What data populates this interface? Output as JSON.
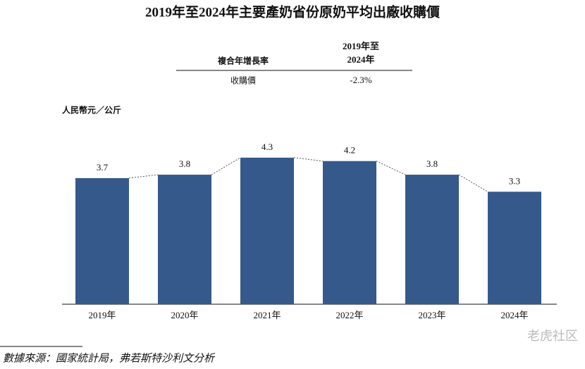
{
  "chart_data": {
    "type": "bar",
    "title": "2019年至2024年主要產奶省份原奶平均出廠收購價",
    "table": {
      "header": [
        "複合年增長率",
        "2019年至\n2024年"
      ],
      "rows": [
        [
          "收購價",
          "-2.3%"
        ]
      ]
    },
    "unit_label": "人民幣元／公斤",
    "categories": [
      "2019年",
      "2020年",
      "2021年",
      "2022年",
      "2023年",
      "2024年"
    ],
    "values": [
      3.7,
      3.8,
      4.3,
      4.2,
      3.8,
      3.3
    ],
    "color": "#35598a",
    "source": "數據來源：國家統計局，弗若斯特沙利文分析",
    "watermark": "老虎社区"
  }
}
